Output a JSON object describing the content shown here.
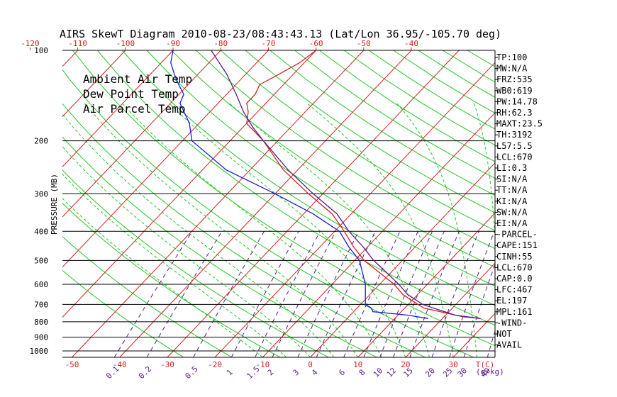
{
  "title": "AIRS SkewT Diagram 2010-08-23/08:43:43.13 (Lat/Lon 36.95/-105.70 deg)",
  "ylabel": "PRESSURE (MB)",
  "legend": [
    {
      "label": "Ambient Air Temp",
      "color": "#d42020"
    },
    {
      "label": "Dew Point Temp",
      "color": "#1a1adc"
    },
    {
      "label": "Air Parcel Temp",
      "color": "#5a1a8a"
    }
  ],
  "colors": {
    "isotherm": "#d42020",
    "adiabat": "#22c822",
    "mixing": "#5a1a8a",
    "dewpoint": "#1a1adc",
    "axis": "#000000"
  },
  "top_temp_ticks": [
    "-120",
    "-110",
    "-100",
    "-90",
    "-80",
    "-70",
    "-60",
    "-50",
    "-40"
  ],
  "bottom_temp_ticks": [
    "-50",
    "-40",
    "-30",
    "-20",
    "-10",
    "0",
    "10",
    "20",
    "30"
  ],
  "bottom_unit_label": "T(C)",
  "mixing_ratio_ticks": [
    "0.1",
    "0.2",
    "0.5",
    "1",
    "1.5",
    "2",
    "3",
    "4",
    "6",
    "8",
    "10",
    "12",
    "15",
    "20",
    "25",
    "30",
    "40"
  ],
  "mixing_unit_label": "(g/kg)",
  "pressure_ticks": [
    "100",
    "200",
    "300",
    "400",
    "500",
    "600",
    "700",
    "800",
    "900",
    "1000"
  ],
  "indices": [
    "TP:100",
    "MW:N/A",
    "FRZ:535",
    "WB0:619",
    "PW:14.78",
    "RH:62.3",
    "MAXT:23.5",
    "TH:3192",
    "L57:5.5",
    "LCL:670",
    "LI:0.3",
    "SI:N/A",
    "TT:N/A",
    "KI:N/A",
    "SW:N/A",
    "EI:N/A",
    "-PARCEL-",
    "CAPE:151",
    "CINH:55",
    "LCL:670",
    "CAP:0.0",
    "LFC:467",
    "EL:197",
    "MPL:161",
    "-WIND-",
    "NOT",
    "AVAIL"
  ],
  "chart_data": {
    "type": "line",
    "title": "AIRS SkewT Diagram 2010-08-23/08:43:43.13 (Lat/Lon 36.95/-105.70 deg)",
    "ylabel": "PRESSURE (MB)",
    "xlabel": "T(C)",
    "yscale": "log (reversed)",
    "ylim": [
      1050,
      100
    ],
    "xlim_surface": [
      -50,
      35
    ],
    "series": [
      {
        "name": "Ambient Air Temp",
        "points": [
          [
            780,
            28
          ],
          [
            770,
            24
          ],
          [
            720,
            14
          ],
          [
            700,
            12
          ],
          [
            650,
            7
          ],
          [
            600,
            3
          ],
          [
            500,
            -8
          ],
          [
            450,
            -13
          ],
          [
            400,
            -18
          ],
          [
            350,
            -24
          ],
          [
            300,
            -33
          ],
          [
            250,
            -43
          ],
          [
            200,
            -53
          ],
          [
            175,
            -60
          ],
          [
            160,
            -62
          ],
          [
            150,
            -64
          ],
          [
            140,
            -64
          ],
          [
            130,
            -65
          ],
          [
            120,
            -63
          ],
          [
            110,
            -61
          ],
          [
            100,
            -60
          ]
        ]
      },
      {
        "name": "Dew Point Temp",
        "points": [
          [
            780,
            17
          ],
          [
            760,
            12
          ],
          [
            740,
            4
          ],
          [
            720,
            3
          ],
          [
            700,
            1
          ],
          [
            600,
            -3
          ],
          [
            500,
            -9
          ],
          [
            450,
            -14
          ],
          [
            400,
            -19
          ],
          [
            350,
            -28
          ],
          [
            300,
            -40
          ],
          [
            250,
            -55
          ],
          [
            200,
            -68
          ],
          [
            175,
            -72
          ],
          [
            150,
            -78
          ],
          [
            140,
            -79
          ],
          [
            130,
            -82
          ],
          [
            120,
            -85
          ],
          [
            110,
            -88
          ],
          [
            100,
            -90
          ]
        ]
      },
      {
        "name": "Air Parcel Temp",
        "points": [
          [
            780,
            28
          ],
          [
            760,
            22
          ],
          [
            720,
            16
          ],
          [
            700,
            13
          ],
          [
            650,
            8
          ],
          [
            600,
            4
          ],
          [
            500,
            -6
          ],
          [
            450,
            -11
          ],
          [
            400,
            -17
          ],
          [
            350,
            -23
          ],
          [
            300,
            -32
          ],
          [
            250,
            -42
          ],
          [
            200,
            -53
          ],
          [
            180,
            -58
          ],
          [
            160,
            -63
          ],
          [
            140,
            -68
          ],
          [
            120,
            -74
          ],
          [
            100,
            -82
          ]
        ]
      }
    ],
    "grid": true,
    "legend_position": "top-left"
  }
}
